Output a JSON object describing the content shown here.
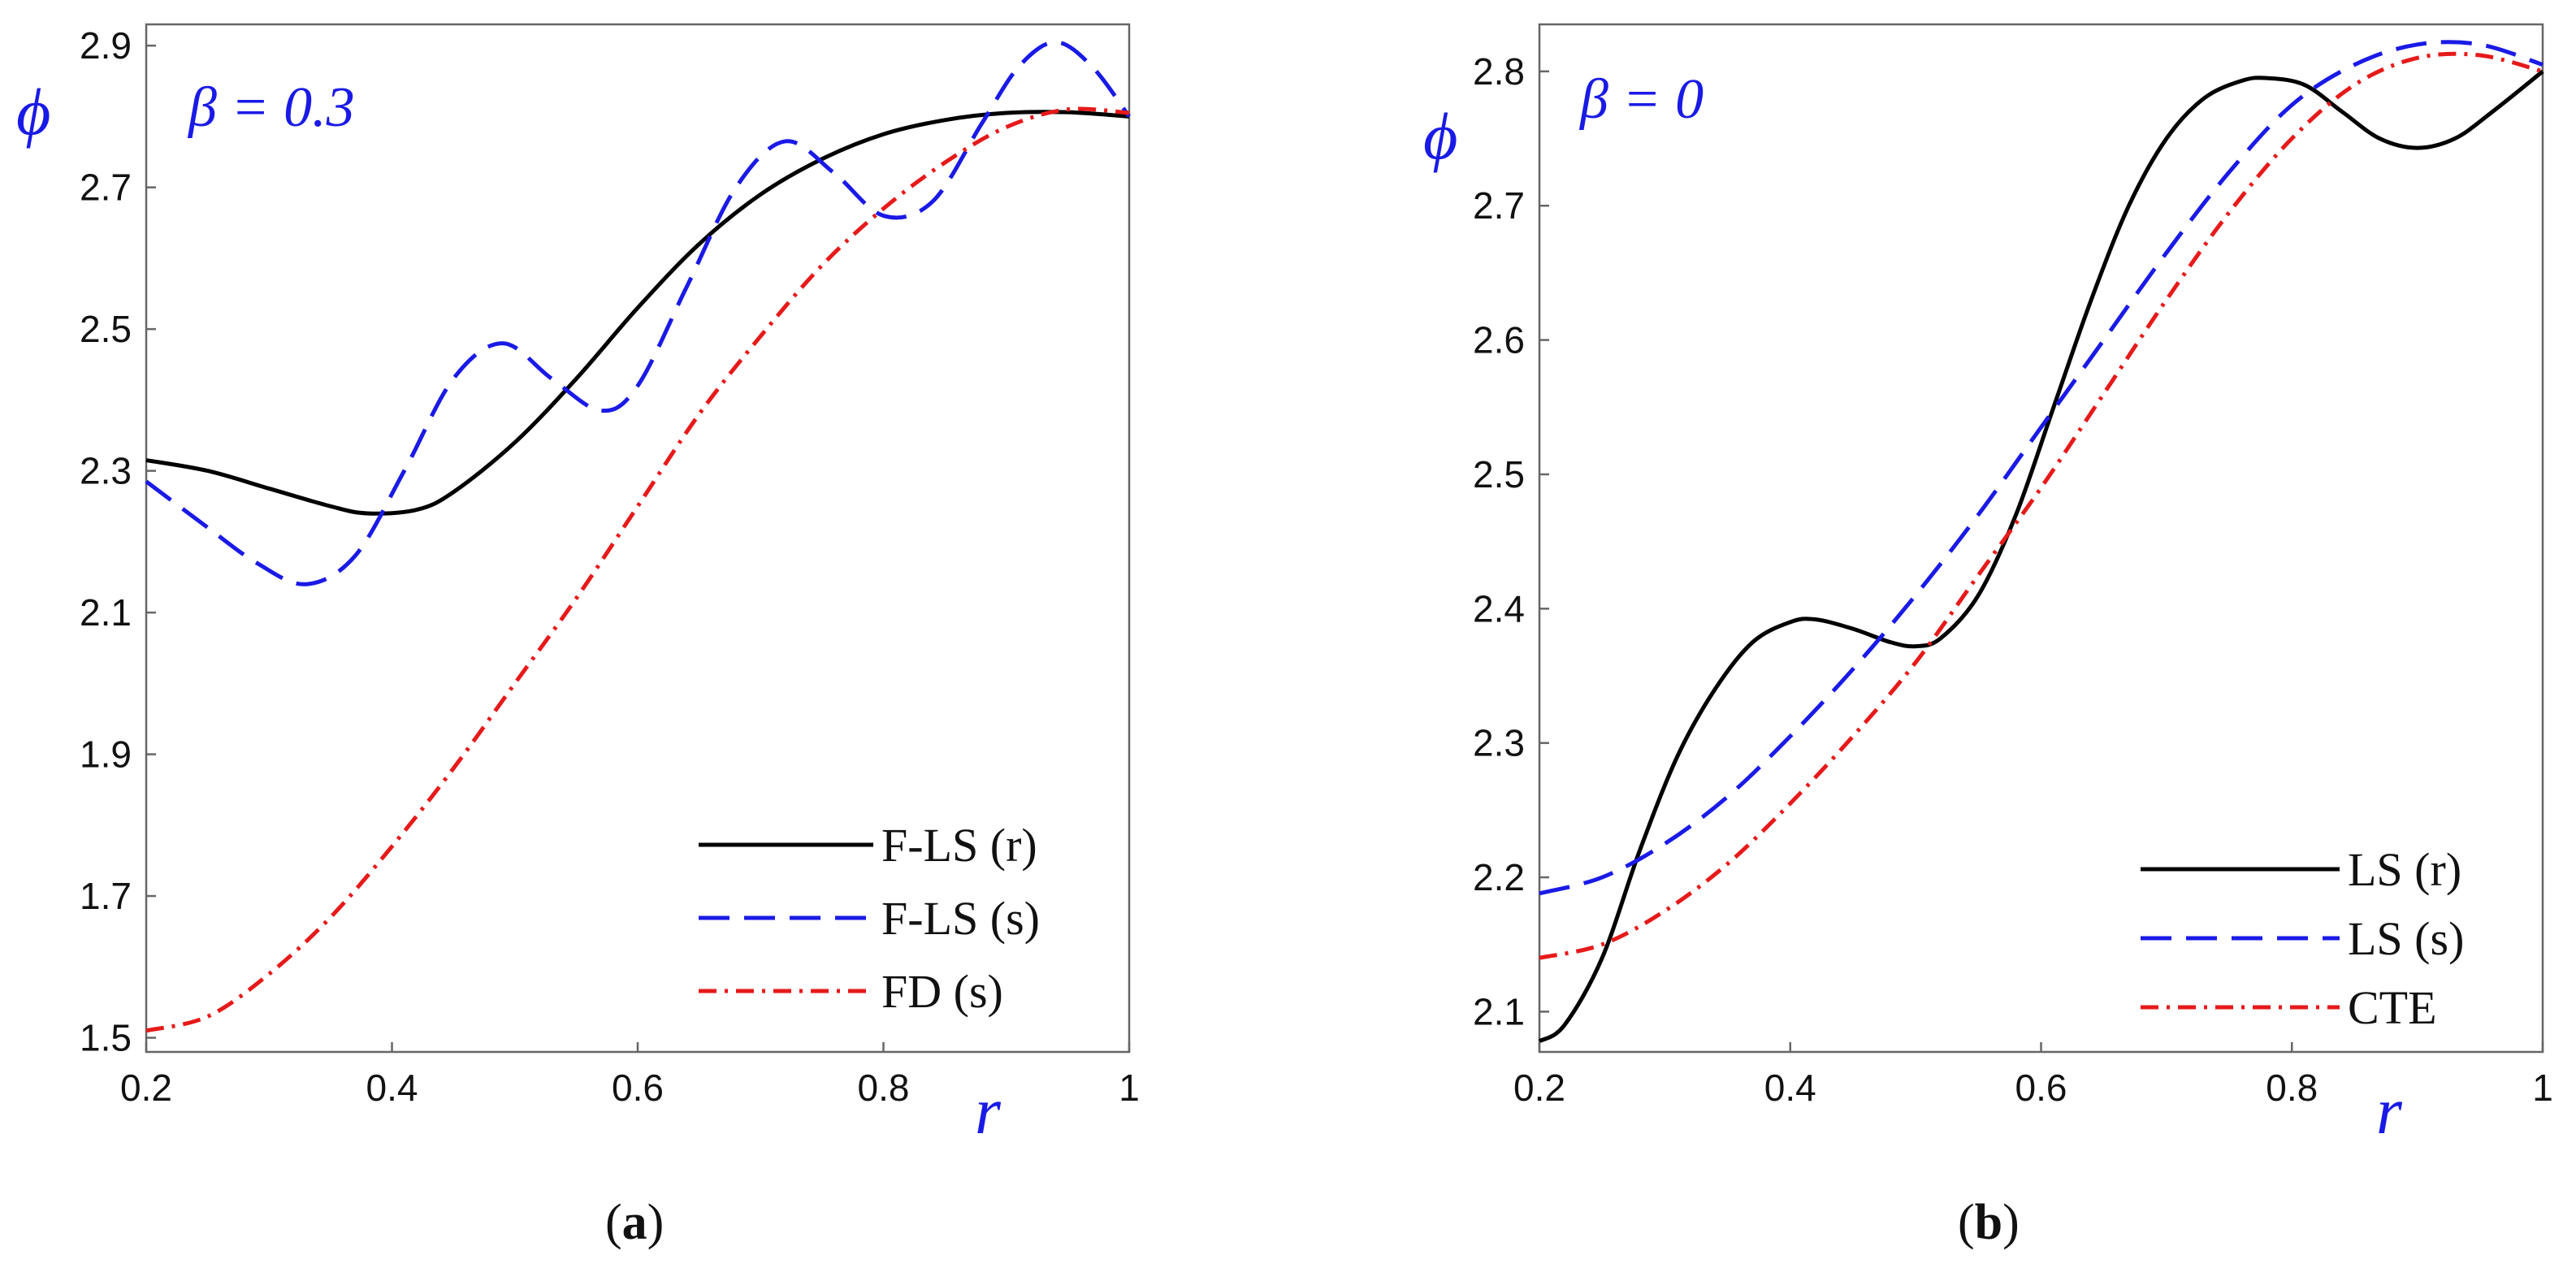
{
  "chart_data": [
    {
      "type": "line",
      "caption": "a",
      "annotation": "β = 0.3",
      "xlabel": "r",
      "ylabel": "ϕ",
      "xlim": [
        0.2,
        1.0
      ],
      "ylim": [
        1.48,
        2.93
      ],
      "xticks": [
        0.2,
        0.4,
        0.6,
        0.8,
        1.0
      ],
      "xtick_labels": [
        "0.2",
        "0.4",
        "0.6",
        "0.8",
        "1"
      ],
      "yticks": [
        1.5,
        1.7,
        1.9,
        2.1,
        2.3,
        2.5,
        2.7,
        2.9
      ],
      "ytick_labels": [
        "1.5",
        "1.7",
        "1.9",
        "2.1",
        "2.3",
        "2.5",
        "2.7",
        "2.9"
      ],
      "legend_position": "bottom-right",
      "series": [
        {
          "name": "F-LS (r)",
          "color": "#000000",
          "dash": "solid",
          "x": [
            0.2,
            0.25,
            0.3,
            0.35,
            0.38,
            0.42,
            0.45,
            0.5,
            0.55,
            0.6,
            0.65,
            0.7,
            0.75,
            0.8,
            0.85,
            0.9,
            0.95,
            1.0
          ],
          "y": [
            2.315,
            2.3,
            2.275,
            2.25,
            2.24,
            2.245,
            2.27,
            2.34,
            2.43,
            2.53,
            2.62,
            2.69,
            2.74,
            2.775,
            2.795,
            2.805,
            2.806,
            2.8
          ]
        },
        {
          "name": "F-LS (s)",
          "color": "#1a1ae6",
          "dash": "dashed",
          "x": [
            0.2,
            0.25,
            0.29,
            0.33,
            0.37,
            0.41,
            0.45,
            0.49,
            0.53,
            0.57,
            0.6,
            0.64,
            0.68,
            0.72,
            0.76,
            0.8,
            0.84,
            0.88,
            0.91,
            0.94,
            0.97,
            1.0
          ],
          "y": [
            2.285,
            2.22,
            2.17,
            2.14,
            2.18,
            2.3,
            2.43,
            2.48,
            2.43,
            2.385,
            2.42,
            2.56,
            2.7,
            2.765,
            2.72,
            2.66,
            2.68,
            2.79,
            2.87,
            2.905,
            2.87,
            2.8
          ]
        },
        {
          "name": "FD (s)",
          "color": "#e61a1a",
          "dash": "dashdot",
          "x": [
            0.2,
            0.25,
            0.3,
            0.35,
            0.4,
            0.45,
            0.5,
            0.55,
            0.6,
            0.65,
            0.7,
            0.75,
            0.8,
            0.85,
            0.9,
            0.95,
            1.0
          ],
          "y": [
            1.51,
            1.53,
            1.59,
            1.67,
            1.77,
            1.88,
            2.0,
            2.12,
            2.25,
            2.38,
            2.49,
            2.59,
            2.67,
            2.735,
            2.785,
            2.81,
            2.805
          ]
        }
      ]
    },
    {
      "type": "line",
      "caption": "b",
      "annotation": "β = 0",
      "xlabel": "r",
      "ylabel": "ϕ",
      "xlim": [
        0.2,
        1.0
      ],
      "ylim": [
        2.07,
        2.835
      ],
      "xticks": [
        0.2,
        0.4,
        0.6,
        0.8,
        1.0
      ],
      "xtick_labels": [
        "0.2",
        "0.4",
        "0.6",
        "0.8",
        "1"
      ],
      "yticks": [
        2.1,
        2.2,
        2.3,
        2.4,
        2.5,
        2.6,
        2.7,
        2.8
      ],
      "ytick_labels": [
        "2.1",
        "2.2",
        "2.3",
        "2.4",
        "2.5",
        "2.6",
        "2.7",
        "2.8"
      ],
      "legend_position": "bottom-right",
      "series": [
        {
          "name": "LS (r)",
          "color": "#000000",
          "dash": "solid",
          "x": [
            0.2,
            0.22,
            0.25,
            0.28,
            0.31,
            0.34,
            0.37,
            0.4,
            0.42,
            0.45,
            0.48,
            0.5,
            0.52,
            0.55,
            0.58,
            0.61,
            0.64,
            0.67,
            0.7,
            0.73,
            0.76,
            0.78,
            0.81,
            0.84,
            0.87,
            0.9,
            0.93,
            0.96,
            1.0
          ],
          "y": [
            2.078,
            2.09,
            2.14,
            2.22,
            2.29,
            2.34,
            2.375,
            2.39,
            2.392,
            2.385,
            2.375,
            2.372,
            2.378,
            2.41,
            2.47,
            2.55,
            2.63,
            2.7,
            2.75,
            2.78,
            2.793,
            2.795,
            2.79,
            2.77,
            2.75,
            2.743,
            2.75,
            2.77,
            2.8
          ]
        },
        {
          "name": "LS (s)",
          "color": "#1a1ae6",
          "dash": "dashed",
          "x": [
            0.2,
            0.25,
            0.3,
            0.35,
            0.4,
            0.45,
            0.5,
            0.55,
            0.6,
            0.65,
            0.7,
            0.75,
            0.8,
            0.85,
            0.9,
            0.95,
            1.0
          ],
          "y": [
            2.188,
            2.2,
            2.225,
            2.26,
            2.305,
            2.355,
            2.41,
            2.47,
            2.535,
            2.6,
            2.665,
            2.725,
            2.775,
            2.805,
            2.82,
            2.82,
            2.805
          ]
        },
        {
          "name": "CTE",
          "color": "#e61a1a",
          "dash": "dashdot",
          "x": [
            0.2,
            0.25,
            0.3,
            0.35,
            0.4,
            0.45,
            0.5,
            0.55,
            0.6,
            0.65,
            0.7,
            0.75,
            0.8,
            0.85,
            0.9,
            0.95,
            1.0
          ],
          "y": [
            2.14,
            2.15,
            2.175,
            2.21,
            2.255,
            2.305,
            2.36,
            2.425,
            2.49,
            2.56,
            2.63,
            2.695,
            2.75,
            2.79,
            2.81,
            2.812,
            2.8
          ]
        }
      ]
    }
  ]
}
